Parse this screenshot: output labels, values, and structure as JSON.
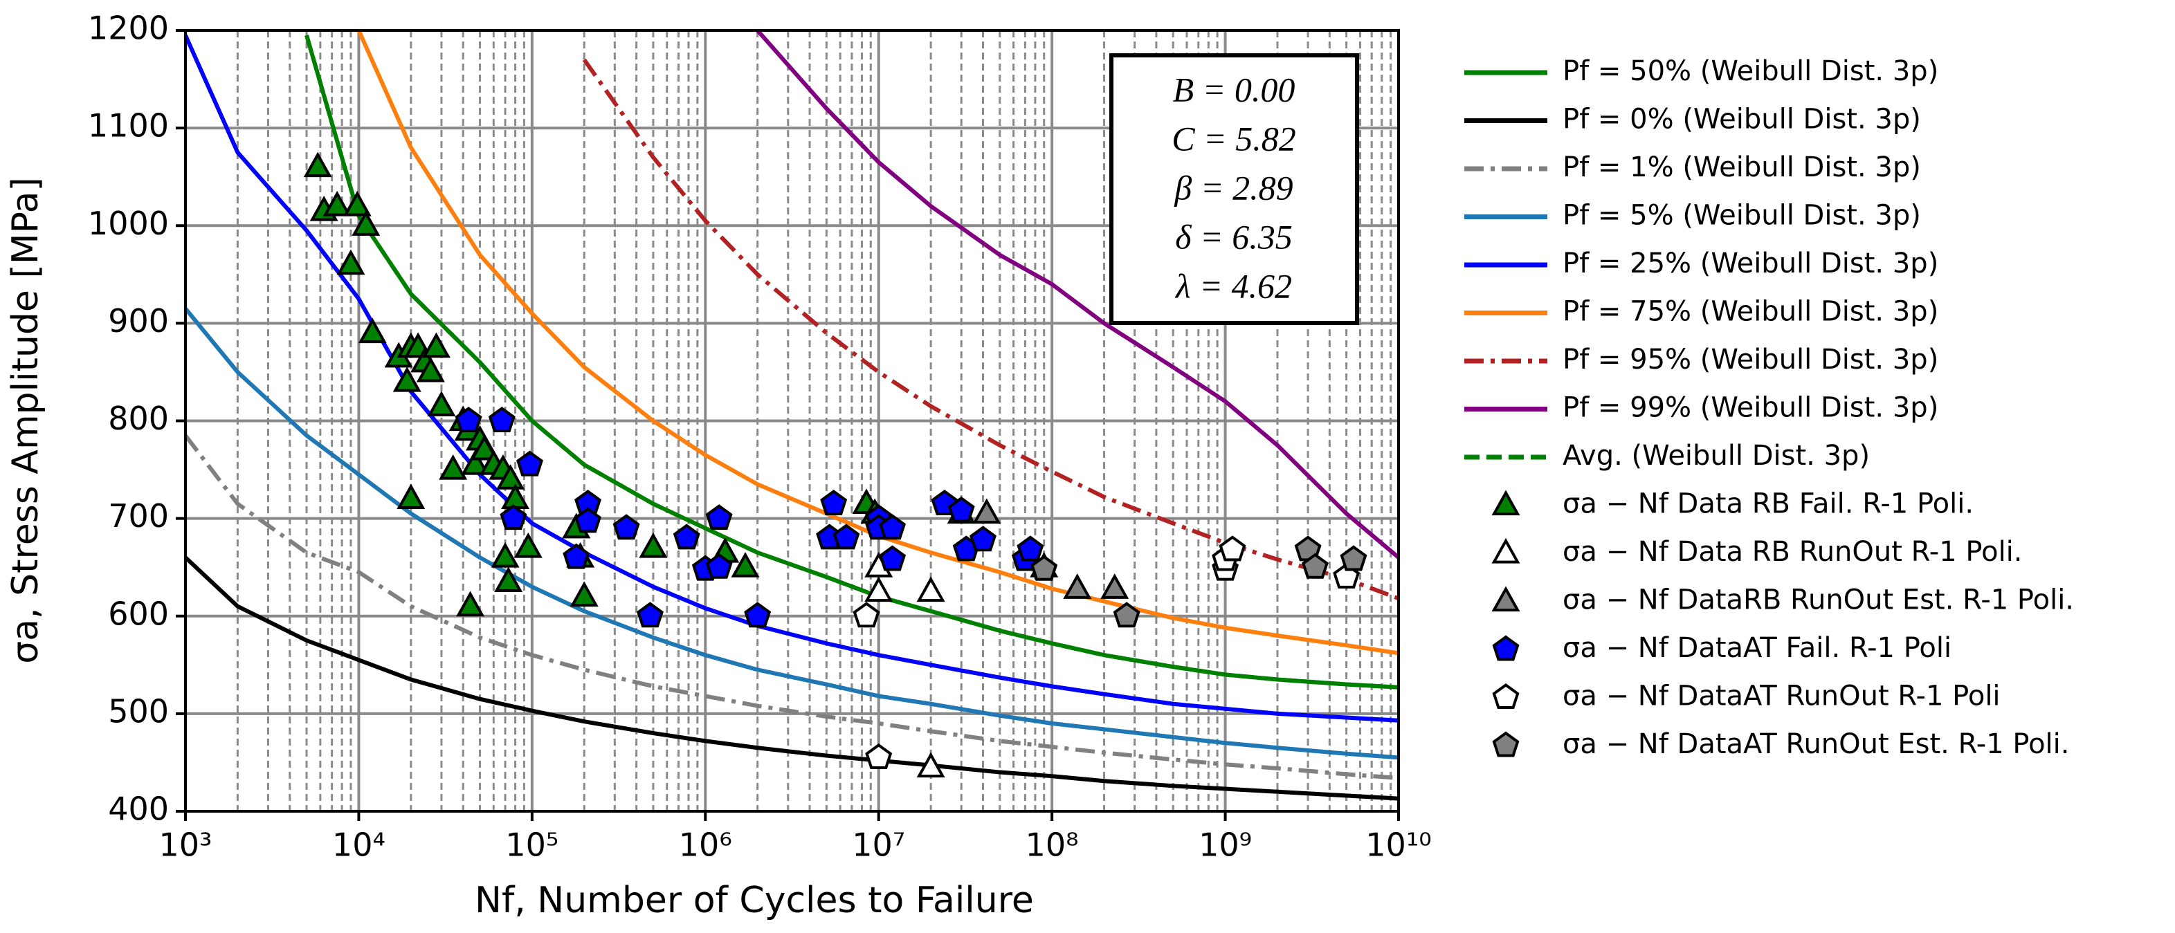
{
  "chart_data": {
    "type": "line",
    "xlabel": "Nf, Number of Cycles to Failure",
    "ylabel": "σa, Stress Amplitude [MPa]",
    "xscale": "log",
    "grid": true,
    "xlim": [
      1000,
      10000000000
    ],
    "ylim": [
      400,
      1200
    ],
    "xticks": [
      {
        "value": 1000,
        "label": "10³"
      },
      {
        "value": 10000,
        "label": "10⁴"
      },
      {
        "value": 100000,
        "label": "10⁵"
      },
      {
        "value": 1000000,
        "label": "10⁶"
      },
      {
        "value": 10000000,
        "label": "10⁷"
      },
      {
        "value": 100000000,
        "label": "10⁸"
      },
      {
        "value": 1000000000,
        "label": "10⁹"
      },
      {
        "value": 10000000000,
        "label": "10¹⁰"
      }
    ],
    "xminorticks": [
      2000,
      3000,
      4000,
      5000,
      6000,
      7000,
      8000,
      9000,
      20000,
      30000,
      40000,
      50000,
      60000,
      70000,
      80000,
      90000,
      200000,
      300000,
      400000,
      500000,
      600000,
      700000,
      800000,
      900000,
      2000000,
      3000000,
      4000000,
      5000000,
      6000000,
      7000000,
      8000000,
      9000000,
      20000000,
      30000000,
      40000000,
      50000000,
      60000000,
      70000000,
      80000000,
      90000000,
      200000000,
      300000000,
      400000000,
      500000000,
      600000000,
      700000000,
      800000000,
      900000000,
      2000000000,
      3000000000,
      4000000000,
      5000000000,
      6000000000,
      7000000000,
      8000000000,
      9000000000
    ],
    "yticks": [
      400,
      500,
      600,
      700,
      800,
      900,
      1000,
      1100,
      1200
    ],
    "annotations": [
      "B = 0.00",
      "C = 5.82",
      "β = 2.89",
      "δ = 6.35",
      "λ = 4.62"
    ],
    "x": [
      1000,
      2000,
      5000,
      10000,
      20000,
      50000,
      100000,
      200000,
      500000,
      1000000,
      2000000,
      5000000,
      10000000,
      20000000,
      50000000,
      100000000,
      200000000,
      500000000,
      1000000000,
      2000000000,
      5000000000,
      10000000000
    ],
    "series": [
      {
        "name": "Pf = 50% (Weibull Dist. 3p)",
        "type": "line",
        "style": "solid",
        "color": "#008000",
        "values": [
          null,
          null,
          1195,
          1010,
          930,
          860,
          800,
          755,
          715,
          690,
          665,
          640,
          620,
          605,
          585,
          572,
          560,
          548,
          540,
          535,
          530,
          527
        ]
      },
      {
        "name": "Pf = 0% (Weibull Dist. 3p)",
        "type": "line",
        "style": "solid",
        "color": "#000000",
        "values": [
          660,
          610,
          575,
          555,
          535,
          515,
          503,
          492,
          480,
          472,
          465,
          457,
          452,
          447,
          440,
          436,
          431,
          426,
          423,
          420,
          416,
          413
        ]
      },
      {
        "name": "Pf = 1% (Weibull Dist. 3p)",
        "type": "line",
        "style": "dashdot",
        "color": "#808080",
        "values": [
          785,
          715,
          665,
          645,
          610,
          578,
          560,
          545,
          528,
          518,
          508,
          497,
          490,
          482,
          472,
          466,
          460,
          453,
          448,
          444,
          438,
          434
        ]
      },
      {
        "name": "Pf = 5% (Weibull Dist. 3p)",
        "type": "line",
        "style": "solid",
        "color": "#1f77b4",
        "values": [
          915,
          850,
          785,
          745,
          705,
          660,
          630,
          605,
          578,
          560,
          545,
          530,
          518,
          510,
          498,
          490,
          484,
          476,
          470,
          465,
          459,
          455
        ]
      },
      {
        "name": "Pf = 25% (Weibull Dist. 3p)",
        "type": "line",
        "style": "solid",
        "color": "#0000ff",
        "values": [
          1195,
          1075,
          995,
          925,
          830,
          745,
          695,
          665,
          630,
          608,
          590,
          572,
          560,
          550,
          537,
          528,
          520,
          510,
          505,
          500,
          496,
          493
        ]
      },
      {
        "name": "Pf = 75% (Weibull Dist. 3p)",
        "type": "line",
        "style": "solid",
        "color": "#ff7f0e",
        "values": [
          null,
          null,
          null,
          1200,
          1080,
          970,
          910,
          855,
          800,
          765,
          735,
          705,
          682,
          665,
          645,
          628,
          615,
          598,
          588,
          580,
          570,
          562
        ]
      },
      {
        "name": "Pf = 95% (Weibull Dist. 3p)",
        "type": "line",
        "style": "dashdot",
        "color": "#b22222",
        "values": [
          null,
          null,
          null,
          null,
          null,
          null,
          null,
          1170,
          1070,
          1005,
          950,
          890,
          850,
          815,
          775,
          748,
          722,
          695,
          675,
          658,
          638,
          618
        ]
      },
      {
        "name": "Pf = 99% (Weibull Dist. 3p)",
        "type": "line",
        "style": "solid",
        "color": "#800080",
        "values": [
          null,
          null,
          null,
          null,
          null,
          null,
          null,
          null,
          null,
          null,
          1200,
          1120,
          1065,
          1020,
          970,
          940,
          900,
          855,
          820,
          775,
          705,
          660
        ]
      },
      {
        "name": "Avg. (Weibull Dist. 3p)",
        "type": "line",
        "style": "dashed",
        "color": "#008000",
        "values": [
          null,
          null,
          1195,
          1010,
          930,
          860,
          800,
          755,
          715,
          690,
          665,
          640,
          620,
          605,
          585,
          572,
          560,
          548,
          540,
          535,
          530,
          527
        ]
      },
      {
        "name": "σa − Nf Data RB Fail. R-1 Poli.",
        "type": "scatter",
        "marker": "triangle",
        "color": "#008000",
        "x": [
          5800,
          6300,
          7500,
          9000,
          9800,
          11000,
          12000,
          17000,
          19000,
          20000,
          22000,
          24000,
          26000,
          28000,
          30000,
          20000,
          35000,
          40000,
          43000,
          47000,
          50000,
          53000,
          60000,
          68000,
          75000,
          80000,
          70000,
          73000,
          95000,
          44000,
          180000,
          190000,
          200000,
          500000,
          1300000,
          1700000,
          8500000,
          9500000,
          30000000
        ],
        "values": [
          1060,
          1015,
          1020,
          960,
          1020,
          1000,
          890,
          865,
          840,
          875,
          875,
          860,
          850,
          875,
          815,
          720,
          750,
          800,
          790,
          755,
          780,
          770,
          755,
          750,
          740,
          720,
          660,
          635,
          670,
          610,
          690,
          660,
          620,
          670,
          665,
          650,
          715,
          705,
          705
        ]
      },
      {
        "name": "σa − Nf Data RB RunOut  R-1 Poli.",
        "type": "scatter",
        "marker": "triangle",
        "color": "#ffffff",
        "x": [
          10000000,
          10000000,
          20000000,
          20000000
        ],
        "values": [
          625,
          650,
          625,
          445
        ]
      },
      {
        "name": "σa − Nf DataRB RunOut Est. R-1 Poli.",
        "type": "scatter",
        "marker": "triangle",
        "color": "#808080",
        "x": [
          42000000,
          90000000,
          140000000,
          230000000
        ],
        "values": [
          705,
          650,
          628,
          628
        ]
      },
      {
        "name": "σa − Nf DataAT Fail. R-1 Poli",
        "type": "scatter",
        "marker": "pentagon",
        "color": "#0000ff",
        "x": [
          43000,
          67000,
          78000,
          97000,
          180000,
          210000,
          210000,
          350000,
          480000,
          780000,
          1000000,
          1200000,
          1200000,
          2000000,
          5500000,
          5200000,
          6500000,
          10000000,
          10000000,
          12000000,
          12000000,
          24000000,
          30000000,
          32000000,
          40000000,
          70000000,
          75000000,
          90000000
        ],
        "values": [
          800,
          800,
          700,
          755,
          660,
          715,
          697,
          690,
          600,
          680,
          648,
          650,
          700,
          600,
          715,
          680,
          680,
          700,
          690,
          690,
          658,
          715,
          708,
          668,
          678,
          658,
          668,
          648
        ]
      },
      {
        "name": "σa − Nf DataAT RunOut  R-1 Poli",
        "type": "scatter",
        "marker": "pentagon",
        "color": "#ffffff",
        "x": [
          8500000,
          10000000,
          1000000000,
          1000000000,
          1100000000,
          5000000000
        ],
        "values": [
          600,
          455,
          648,
          658,
          668,
          640
        ]
      },
      {
        "name": "σa − Nf DataAT RunOut Est. R-1 Poli.",
        "type": "scatter",
        "marker": "pentagon",
        "color": "#808080",
        "x": [
          90000000,
          270000000,
          3000000000,
          3300000000,
          5500000000
        ],
        "values": [
          648,
          600,
          668,
          650,
          658
        ]
      }
    ]
  }
}
